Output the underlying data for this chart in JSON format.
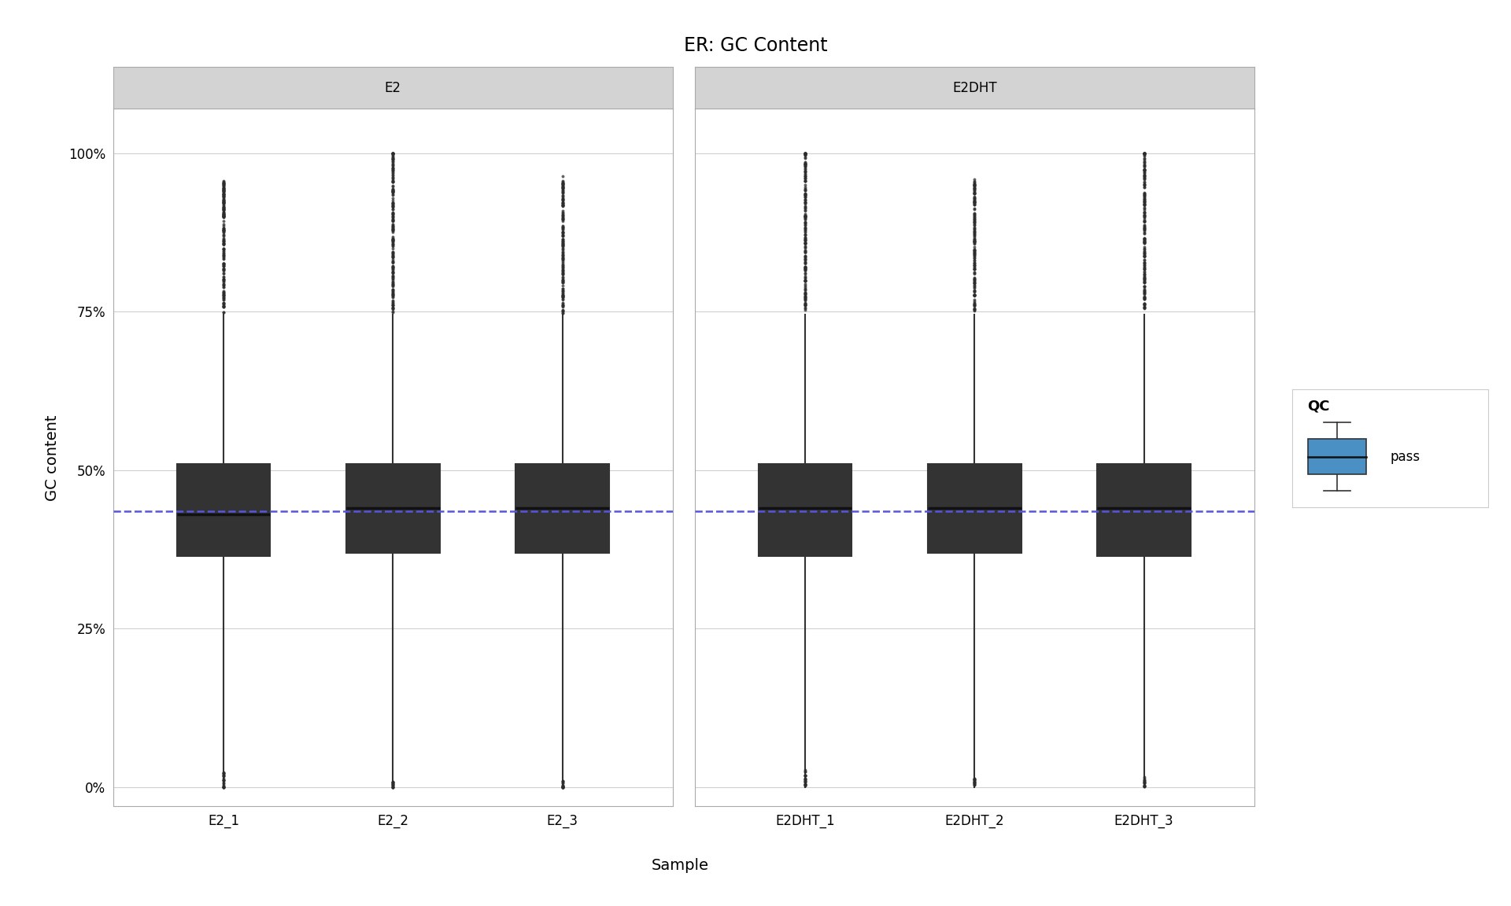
{
  "title": "ER: GC Content",
  "xlabel": "Sample",
  "ylabel": "GC content",
  "facets": [
    "E2",
    "E2DHT"
  ],
  "samples": {
    "E2": [
      "E2_1",
      "E2_2",
      "E2_3"
    ],
    "E2DHT": [
      "E2DHT_1",
      "E2DHT_2",
      "E2DHT_3"
    ]
  },
  "box_color": "#4a90c4",
  "box_edge_color": "#333333",
  "median_color": "#111111",
  "whisker_color": "#333333",
  "flier_color": "#2c2c2c",
  "dashed_line_color": "#5555dd",
  "dashed_line_y": 0.435,
  "background_color": "#ffffff",
  "facet_header_color": "#d3d3d3",
  "facet_border_color": "#aaaaaa",
  "grid_color": "#d0d0d0",
  "yticks": [
    0.0,
    0.25,
    0.5,
    0.75,
    1.0
  ],
  "ytick_labels": [
    "0%",
    "25%",
    "50%",
    "75%",
    "100%"
  ],
  "ylim": [
    -0.03,
    1.07
  ],
  "boxes": {
    "E2_1": {
      "med": 0.43,
      "q1": 0.365,
      "q3": 0.51,
      "whislo": 0.0,
      "whishi": 0.745,
      "fliers_hi": [
        0.76,
        0.78,
        0.8,
        0.82,
        0.84,
        0.86,
        0.88,
        0.9,
        0.91,
        0.92,
        0.93,
        0.94,
        0.95
      ],
      "fliers_lo": [
        0.0,
        0.01,
        0.02
      ]
    },
    "E2_2": {
      "med": 0.44,
      "q1": 0.37,
      "q3": 0.51,
      "whislo": 0.0,
      "whishi": 0.745,
      "fliers_hi": [
        0.76,
        0.78,
        0.8,
        0.82,
        0.84,
        0.86,
        0.88,
        0.9,
        0.92,
        0.94,
        0.96,
        0.98,
        1.0
      ],
      "fliers_lo": [
        0.0,
        0.005
      ]
    },
    "E2_3": {
      "med": 0.44,
      "q1": 0.37,
      "q3": 0.51,
      "whislo": 0.0,
      "whishi": 0.745,
      "fliers_hi": [
        0.76,
        0.78,
        0.8,
        0.82,
        0.84,
        0.86,
        0.88,
        0.9,
        0.92,
        0.94,
        0.95
      ],
      "fliers_lo": [
        0.0,
        0.005
      ]
    },
    "E2DHT_1": {
      "med": 0.44,
      "q1": 0.365,
      "q3": 0.51,
      "whislo": 0.0,
      "whishi": 0.745,
      "fliers_hi": [
        0.76,
        0.78,
        0.8,
        0.82,
        0.84,
        0.86,
        0.88,
        0.9,
        0.92,
        0.94,
        0.96,
        0.98,
        1.0
      ],
      "fliers_lo": [
        0.005,
        0.01,
        0.02
      ]
    },
    "E2DHT_2": {
      "med": 0.44,
      "q1": 0.37,
      "q3": 0.51,
      "whislo": 0.0,
      "whishi": 0.745,
      "fliers_hi": [
        0.76,
        0.78,
        0.8,
        0.82,
        0.84,
        0.86,
        0.88,
        0.9,
        0.92,
        0.94,
        0.95
      ],
      "fliers_lo": [
        0.005,
        0.01
      ]
    },
    "E2DHT_3": {
      "med": 0.44,
      "q1": 0.365,
      "q3": 0.51,
      "whislo": 0.0,
      "whishi": 0.745,
      "fliers_hi": [
        0.76,
        0.78,
        0.8,
        0.82,
        0.84,
        0.86,
        0.88,
        0.9,
        0.92,
        0.94,
        0.96,
        0.98,
        1.0
      ],
      "fliers_lo": [
        0.005,
        0.01
      ]
    }
  },
  "legend_label": "pass",
  "title_fontsize": 17,
  "axis_label_fontsize": 14,
  "tick_fontsize": 12,
  "facet_fontsize": 12
}
